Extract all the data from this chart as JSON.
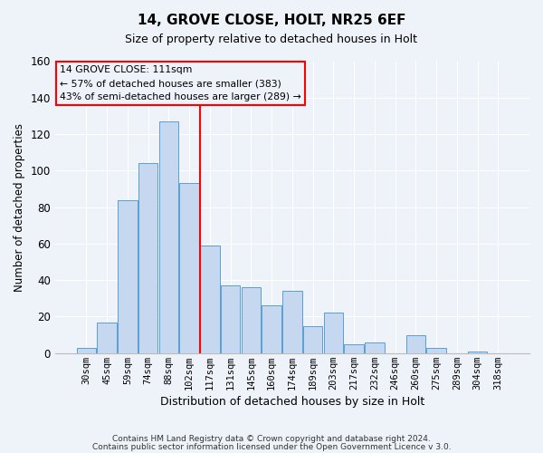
{
  "title": "14, GROVE CLOSE, HOLT, NR25 6EF",
  "subtitle": "Size of property relative to detached houses in Holt",
  "xlabel": "Distribution of detached houses by size in Holt",
  "ylabel": "Number of detached properties",
  "bar_labels": [
    "30sqm",
    "45sqm",
    "59sqm",
    "74sqm",
    "88sqm",
    "102sqm",
    "117sqm",
    "131sqm",
    "145sqm",
    "160sqm",
    "174sqm",
    "189sqm",
    "203sqm",
    "217sqm",
    "232sqm",
    "246sqm",
    "260sqm",
    "275sqm",
    "289sqm",
    "304sqm",
    "318sqm"
  ],
  "bar_values": [
    3,
    17,
    84,
    104,
    127,
    93,
    59,
    37,
    36,
    26,
    34,
    15,
    22,
    5,
    6,
    0,
    10,
    3,
    0,
    1,
    0
  ],
  "bar_color": "#c5d8f0",
  "bar_edge_color": "#5a9fd4",
  "vline_x_index": 5.5,
  "vline_color": "red",
  "annotation_text": "14 GROVE CLOSE: 111sqm\n← 57% of detached houses are smaller (383)\n43% of semi-detached houses are larger (289) →",
  "annotation_box_edge_color": "red",
  "ylim": [
    0,
    160
  ],
  "yticks": [
    0,
    20,
    40,
    60,
    80,
    100,
    120,
    140,
    160
  ],
  "footer1": "Contains HM Land Registry data © Crown copyright and database right 2024.",
  "footer2": "Contains public sector information licensed under the Open Government Licence v 3.0.",
  "background_color": "#eef2f9",
  "plot_bg_color": "#eef2f9",
  "grid_color": "#ffffff",
  "title_fontsize": 11,
  "subtitle_fontsize": 9
}
